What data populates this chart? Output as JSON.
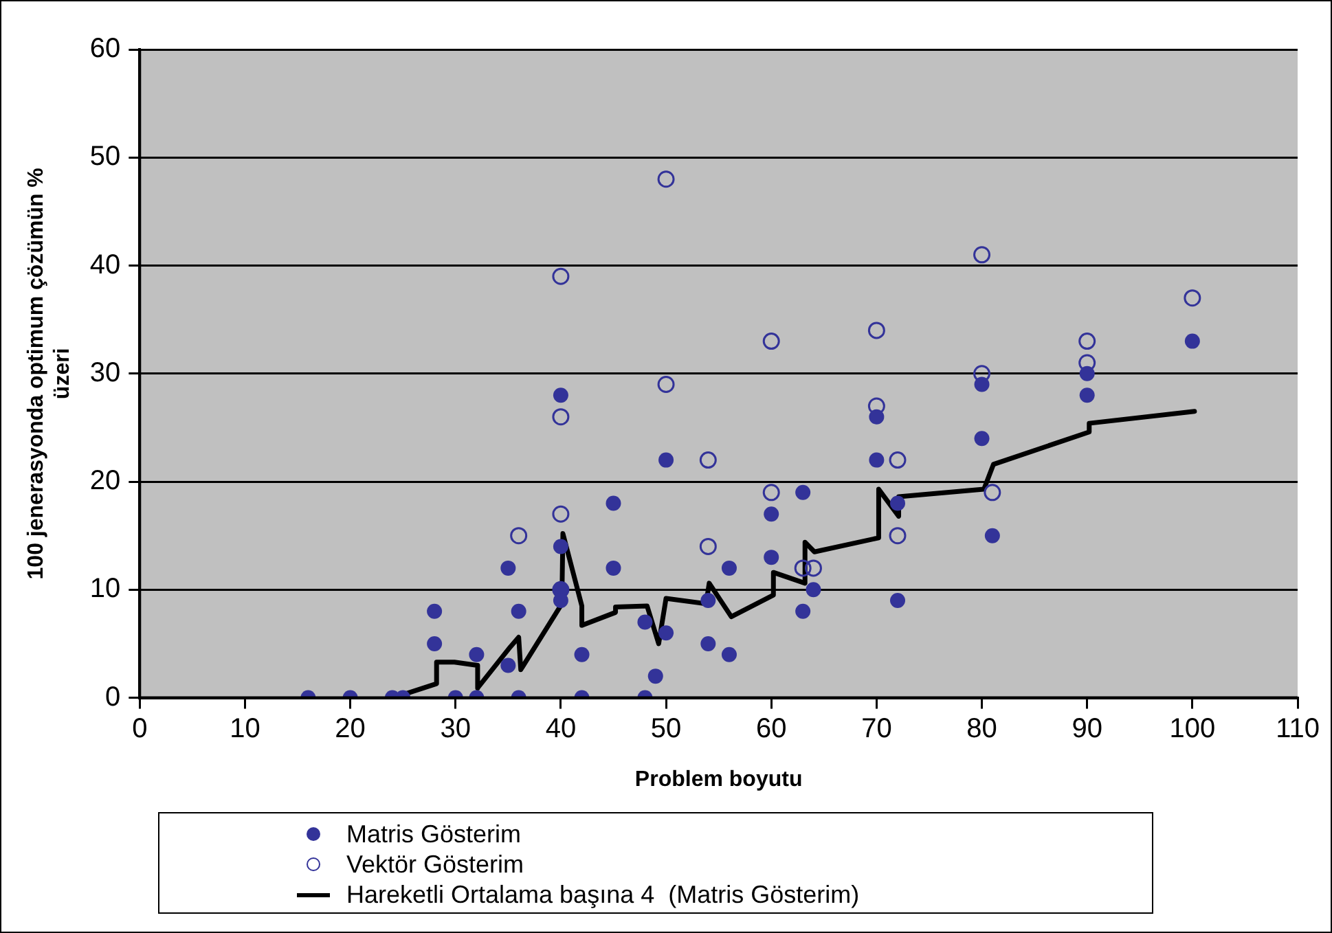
{
  "chart_data": {
    "type": "scatter",
    "xlabel": "Problem boyutu",
    "ylabel": "100 jenerasyonda optimum çözümün % üzeri",
    "xlim": [
      0,
      110
    ],
    "xticks": [
      0,
      10,
      20,
      30,
      40,
      50,
      60,
      70,
      80,
      90,
      100,
      110
    ],
    "ylim": [
      0,
      60
    ],
    "yticks": [
      0,
      10,
      20,
      30,
      40,
      50,
      60
    ],
    "grid": "y",
    "legend": "bottom",
    "series": [
      {
        "name": "Matris Gösterim",
        "color": "#333399",
        "marker": "circle",
        "x": [
          16,
          20,
          24,
          25,
          28,
          28,
          30,
          32,
          32,
          35,
          35,
          36,
          36,
          40,
          40,
          40,
          40,
          42,
          42,
          45,
          45,
          48,
          48,
          49,
          50,
          50,
          54,
          54,
          56,
          56,
          60,
          60,
          63,
          63,
          64,
          70,
          70,
          72,
          72,
          80,
          80,
          81,
          90,
          90,
          100
        ],
        "values": [
          0,
          0,
          0,
          0,
          8,
          5,
          0,
          4,
          0,
          12,
          3,
          8,
          0,
          28,
          10,
          9,
          14,
          4,
          0,
          18,
          12,
          7,
          0,
          2,
          22,
          6,
          9,
          5,
          12,
          4,
          17,
          13,
          19,
          8,
          10,
          26,
          22,
          18,
          9,
          29,
          24,
          15,
          30,
          28,
          33
        ]
      },
      {
        "name": "Vektör Gösterim",
        "color": "#333399",
        "marker": "circle-open",
        "x": [
          36,
          40,
          40,
          40,
          40,
          50,
          50,
          54,
          54,
          60,
          60,
          63,
          64,
          70,
          70,
          72,
          72,
          80,
          80,
          81,
          90,
          90,
          100
        ],
        "values": [
          15,
          39,
          26,
          17,
          10,
          48,
          29,
          22,
          14,
          33,
          19,
          12,
          12,
          34,
          27,
          22,
          15,
          41,
          30,
          19,
          33,
          31,
          37
        ]
      },
      {
        "name": "Hareketli Ortalama başına 4  (Matris Gösterim)",
        "type": "line",
        "color": "#000000",
        "marker": "none",
        "line_style": "solid",
        "x": [
          24.1,
          28.2,
          28.2,
          29.9,
          32.1,
          32.1,
          35.2,
          36,
          36.2,
          40.1,
          40.2,
          42,
          42,
          45.2,
          45.2,
          48.2,
          49.3,
          50,
          53.8,
          54.1,
          56.2,
          60.2,
          60.2,
          63.2,
          63.2,
          64.1,
          70.2,
          70.2,
          72.1,
          72.1,
          74.3,
          80.2,
          81.1,
          90.2,
          90.2,
          100.2
        ],
        "values": [
          0,
          1.3,
          3.3,
          3.3,
          3.0,
          0.9,
          4.7,
          5.6,
          2.6,
          8.7,
          15.2,
          8.5,
          6.7,
          7.9,
          8.4,
          8.5,
          5.0,
          9.2,
          8.7,
          10.6,
          7.5,
          9.5,
          11.6,
          10.6,
          14.4,
          13.5,
          14.8,
          19.3,
          16.8,
          18.6,
          18.8,
          19.3,
          21.6,
          24.6,
          25.4,
          26.5
        ]
      }
    ]
  }
}
